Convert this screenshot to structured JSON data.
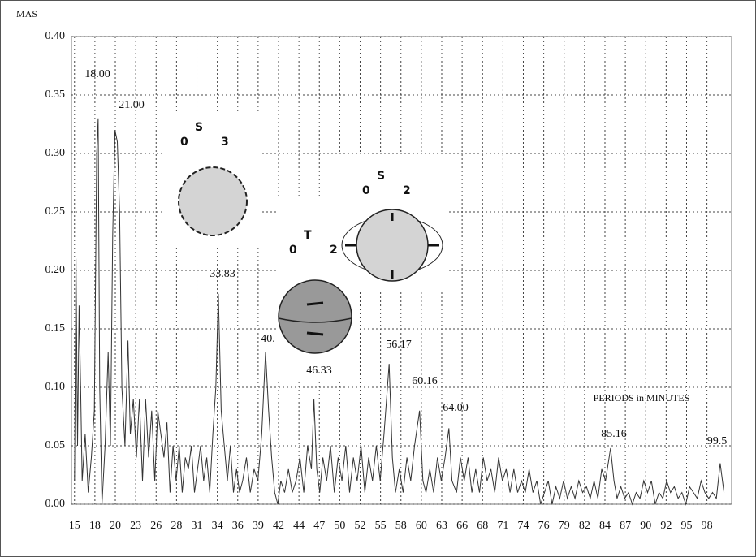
{
  "chart_data": {
    "type": "line",
    "y_label": "MAS",
    "x_label": "PERIODS in MINUTES",
    "xlim": [
      14.6,
      101
    ],
    "ylim": [
      0,
      0.4
    ],
    "yticks": [
      {
        "value": 0,
        "label": "0.00"
      },
      {
        "value": 0.05,
        "label": "0.05"
      },
      {
        "value": 0.1,
        "label": "0.10"
      },
      {
        "value": 0.15,
        "label": "0.15"
      },
      {
        "value": 0.2,
        "label": "0.20"
      },
      {
        "value": 0.25,
        "label": "0.25"
      },
      {
        "value": 0.3,
        "label": "0.30"
      },
      {
        "value": 0.35,
        "label": "0.35"
      },
      {
        "value": 0.4,
        "label": "0.40"
      }
    ],
    "xticks": [
      15,
      {
        "value": 17.67,
        "label": "18"
      },
      {
        "value": 20.34,
        "label": "20"
      },
      {
        "value": 23.01,
        "label": "23"
      },
      {
        "value": 25.68,
        "label": "26"
      },
      {
        "value": 28.35,
        "label": "28"
      },
      {
        "value": 31.02,
        "label": "31"
      },
      {
        "value": 33.69,
        "label": "34"
      },
      {
        "value": 36.36,
        "label": "36"
      },
      {
        "value": 39.03,
        "label": "39"
      },
      {
        "value": 41.7,
        "label": "42"
      },
      {
        "value": 44.37,
        "label": "44"
      },
      {
        "value": 47.04,
        "label": "47"
      },
      {
        "value": 49.71,
        "label": "50"
      },
      {
        "value": 52.38,
        "label": "52"
      },
      {
        "value": 55.05,
        "label": "55"
      },
      {
        "value": 57.72,
        "label": "58"
      },
      {
        "value": 60.39,
        "label": "60"
      },
      {
        "value": 63.06,
        "label": "63"
      },
      {
        "value": 65.73,
        "label": "66"
      },
      {
        "value": 68.4,
        "label": "68"
      },
      {
        "value": 71.07,
        "label": "71"
      },
      {
        "value": 73.74,
        "label": "74"
      },
      {
        "value": 76.41,
        "label": "76"
      },
      {
        "value": 79.08,
        "label": "79"
      },
      {
        "value": 81.75,
        "label": "82"
      },
      {
        "value": 84.42,
        "label": "84"
      },
      {
        "value": 87.09,
        "label": "87"
      },
      {
        "value": 89.76,
        "label": "90"
      },
      {
        "value": 92.43,
        "label": "92"
      },
      {
        "value": 95.1,
        "label": "95"
      },
      {
        "value": 97.77,
        "label": "98"
      }
    ],
    "grid": true,
    "color": "#333333",
    "x": [
      15,
      15.2,
      15.4,
      15.6,
      15.8,
      16,
      16.4,
      16.8,
      17.2,
      17.6,
      17.9,
      18.1,
      18.3,
      18.6,
      19,
      19.4,
      19.7,
      20,
      20.3,
      20.6,
      20.9,
      21.2,
      21.6,
      22,
      22.3,
      22.7,
      23.1,
      23.5,
      23.9,
      24.3,
      24.7,
      25.1,
      25.5,
      25.9,
      26.3,
      26.7,
      27.1,
      27.5,
      27.9,
      28.3,
      28.7,
      29.1,
      29.5,
      29.9,
      30.3,
      30.7,
      31.1,
      31.5,
      31.9,
      32.3,
      32.7,
      33.1,
      33.5,
      33.83,
      34.2,
      34.6,
      35,
      35.4,
      35.8,
      36.2,
      36.6,
      37,
      37.5,
      38,
      38.5,
      39,
      39.5,
      40,
      40.4,
      40.8,
      41.2,
      41.6,
      42,
      42.5,
      43,
      43.5,
      44,
      44.5,
      45,
      45.5,
      46,
      46.33,
      46.7,
      47.1,
      47.5,
      48,
      48.5,
      49,
      49.5,
      50,
      50.5,
      51,
      51.5,
      52,
      52.5,
      53,
      53.5,
      54,
      54.5,
      55,
      55.5,
      56.17,
      56.6,
      57,
      57.5,
      58,
      58.5,
      59,
      59.5,
      60.16,
      60.6,
      61,
      61.5,
      62,
      62.5,
      63,
      63.5,
      64,
      64.4,
      65,
      65.5,
      66,
      66.5,
      67,
      67.5,
      68,
      68.5,
      69,
      69.5,
      70,
      70.5,
      71,
      71.5,
      72,
      72.5,
      73,
      73.5,
      74,
      74.5,
      75,
      75.5,
      76,
      76.5,
      77,
      77.5,
      78,
      78.5,
      79,
      79.5,
      80,
      80.5,
      81,
      81.5,
      82,
      82.5,
      83,
      83.5,
      84,
      84.5,
      85.16,
      85.6,
      86,
      86.5,
      87,
      87.5,
      88,
      88.5,
      89,
      89.5,
      90,
      90.5,
      91,
      91.5,
      92,
      92.5,
      93,
      93.5,
      94,
      94.5,
      95,
      95.5,
      96,
      96.5,
      97,
      97.5,
      98,
      98.5,
      99,
      99.5,
      99.8,
      100
    ],
    "values": [
      0.02,
      0.21,
      0.05,
      0.17,
      0.1,
      0.02,
      0.06,
      0.01,
      0.04,
      0.08,
      0.3,
      0.33,
      0.1,
      0,
      0.05,
      0.13,
      0.05,
      0.23,
      0.32,
      0.31,
      0.25,
      0.1,
      0.05,
      0.14,
      0.06,
      0.09,
      0.04,
      0.09,
      0.02,
      0.09,
      0.04,
      0.08,
      0.02,
      0.08,
      0.06,
      0.04,
      0.07,
      0.01,
      0.05,
      0.02,
      0.05,
      0.01,
      0.04,
      0.03,
      0.05,
      0.01,
      0.03,
      0.05,
      0.02,
      0.04,
      0.01,
      0.06,
      0.1,
      0.18,
      0.08,
      0.05,
      0.02,
      0.05,
      0.01,
      0.03,
      0.01,
      0.02,
      0.04,
      0.01,
      0.03,
      0.02,
      0.06,
      0.13,
      0.08,
      0.04,
      0.01,
      0,
      0.02,
      0.01,
      0.03,
      0.01,
      0.02,
      0.04,
      0.01,
      0.05,
      0.03,
      0.09,
      0.03,
      0.01,
      0.04,
      0.02,
      0.05,
      0.01,
      0.04,
      0.02,
      0.05,
      0.01,
      0.04,
      0.02,
      0.05,
      0.01,
      0.04,
      0.02,
      0.05,
      0.02,
      0.06,
      0.12,
      0.04,
      0.01,
      0.03,
      0.01,
      0.04,
      0.02,
      0.05,
      0.08,
      0.02,
      0.01,
      0.03,
      0.01,
      0.04,
      0.02,
      0.04,
      0.065,
      0.02,
      0.01,
      0.04,
      0.02,
      0.04,
      0.01,
      0.03,
      0.01,
      0.04,
      0.02,
      0.03,
      0.01,
      0.04,
      0.02,
      0.03,
      0.01,
      0.03,
      0.01,
      0.02,
      0.01,
      0.03,
      0.01,
      0.02,
      0,
      0.01,
      0.02,
      0,
      0.015,
      0.005,
      0.02,
      0.005,
      0.015,
      0.005,
      0.02,
      0.01,
      0.015,
      0.005,
      0.02,
      0.005,
      0.03,
      0.02,
      0.048,
      0.02,
      0.005,
      0.015,
      0.005,
      0.01,
      0,
      0.01,
      0.005,
      0.02,
      0.01,
      0.02,
      0,
      0.01,
      0.005,
      0.02,
      0.01,
      0.015,
      0.005,
      0.01,
      0,
      0.015,
      0.01,
      0.005,
      0.02,
      0.01,
      0.005,
      0.01,
      0.005,
      0.035,
      0.02,
      0.01
    ],
    "peak_labels": [
      "18.00",
      "21.00",
      "33.83",
      "40.",
      "46.33",
      "56.17",
      "60.16",
      "64.00",
      "85.16",
      "99.5"
    ],
    "modes": [
      {
        "pre": "0",
        "main": "S",
        "post": "3"
      },
      {
        "pre": "0",
        "main": "T",
        "post": "2"
      },
      {
        "pre": "0",
        "main": "S",
        "post": "2"
      }
    ]
  }
}
